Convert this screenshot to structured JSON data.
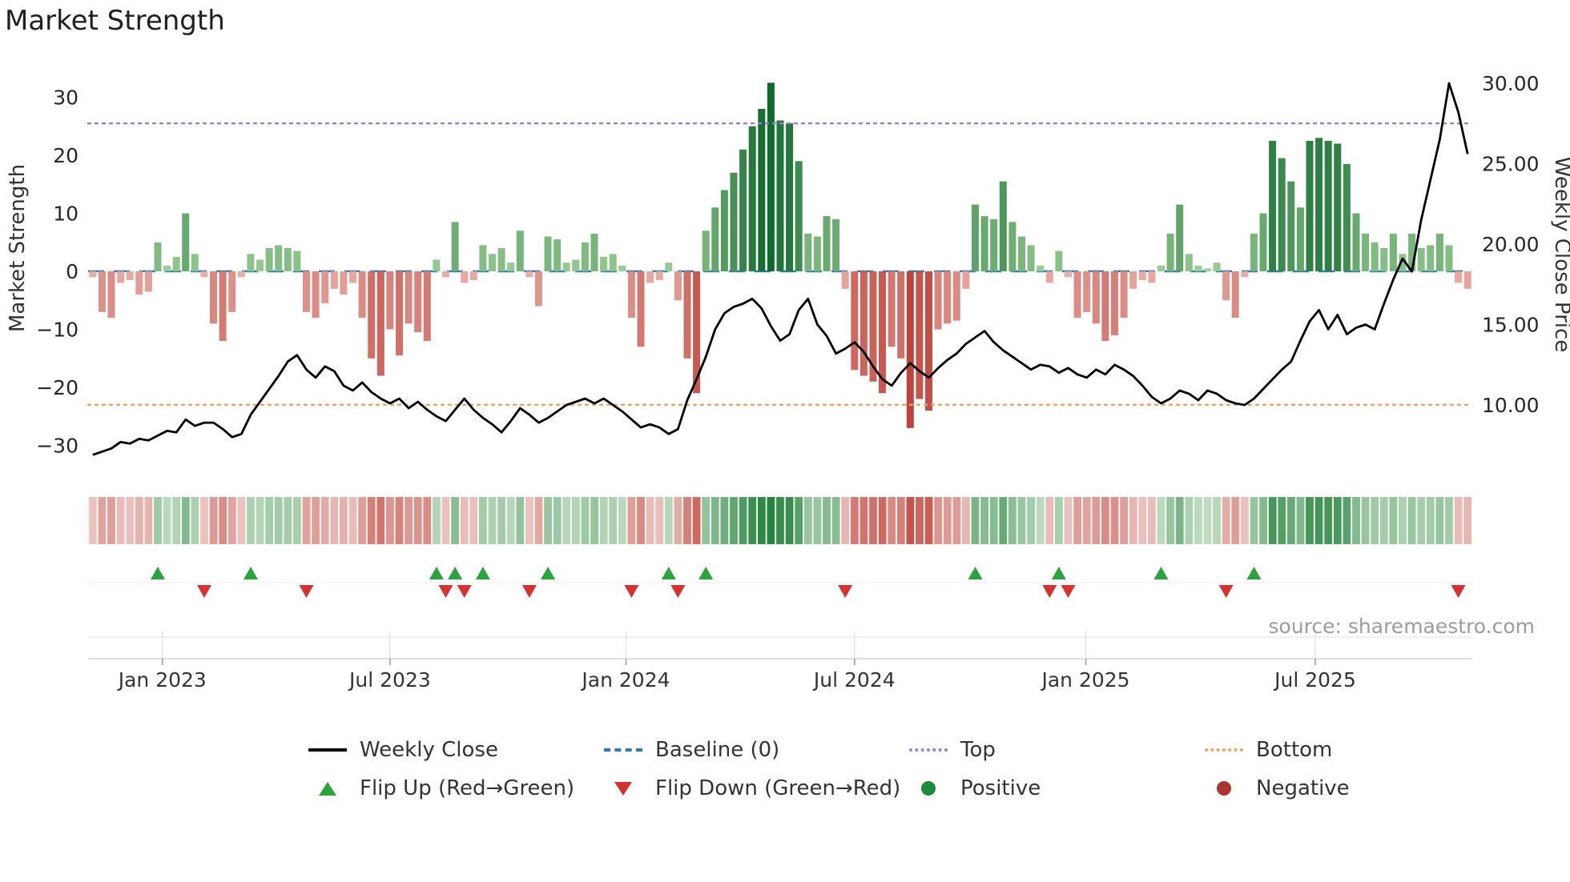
{
  "page": {
    "title": "Market Strength",
    "source": "source: sharemaestro.com"
  },
  "chart_data": {
    "type": "combo",
    "title": "Market Strength",
    "weeks": 149,
    "series": [
      {
        "name": "Market Strength",
        "type": "bar",
        "axis": "left",
        "values": [
          -1,
          -7,
          -8,
          -2,
          -1.5,
          -4,
          -3.5,
          5,
          1,
          2.5,
          10,
          3,
          -1,
          -9,
          -12,
          -7,
          -1,
          3,
          2,
          4,
          4.5,
          4,
          3.5,
          -7,
          -8,
          -5.5,
          -3,
          -4,
          -2,
          -8,
          -15,
          -18,
          -10,
          -14.5,
          -9,
          -10.5,
          -12,
          2,
          -1,
          8.5,
          -2,
          -1.5,
          4.5,
          3,
          4,
          1.5,
          7,
          -1,
          -6,
          6,
          5.5,
          1.5,
          2,
          5,
          6.5,
          2.5,
          3,
          1,
          -8,
          -13,
          -2,
          -1.5,
          1.5,
          -5,
          -15,
          -21,
          7,
          11,
          14,
          17,
          21,
          25,
          28,
          32.5,
          26,
          25.5,
          19,
          6.5,
          6,
          9.5,
          9,
          -3,
          -17,
          -18,
          -19,
          -21,
          -13,
          -15,
          -27,
          -22,
          -24,
          -10,
          -9,
          -8.5,
          -3,
          11.5,
          9.5,
          9,
          15.5,
          8.5,
          6,
          4.5,
          1,
          -2,
          3.5,
          -1,
          -8,
          -7,
          -9,
          -12,
          -11,
          -8,
          -3,
          -1.5,
          -2,
          1,
          6.5,
          11.5,
          3,
          1,
          0.5,
          1.5,
          -5,
          -8,
          -1,
          6.5,
          10,
          22.5,
          19.5,
          15.5,
          11,
          22.5,
          23,
          22.5,
          22,
          18.5,
          10,
          6.5,
          5,
          4,
          6.5,
          3,
          6.5,
          4,
          4.5,
          6.5,
          4.5,
          -2,
          -3
        ]
      },
      {
        "name": "Weekly Close",
        "type": "line",
        "axis": "right",
        "values": [
          6.9,
          7.1,
          7.3,
          7.7,
          7.6,
          7.9,
          7.8,
          8.1,
          8.4,
          8.3,
          9.1,
          8.7,
          8.9,
          8.9,
          8.5,
          8.0,
          8.2,
          9.4,
          10.2,
          11.0,
          11.8,
          12.7,
          13.1,
          12.2,
          11.7,
          12.4,
          12.1,
          11.2,
          10.9,
          11.4,
          10.8,
          10.4,
          10.1,
          10.4,
          9.8,
          10.2,
          9.7,
          9.3,
          9.0,
          9.7,
          10.4,
          9.7,
          9.2,
          8.8,
          8.3,
          9.0,
          9.8,
          9.4,
          8.9,
          9.2,
          9.6,
          10.0,
          10.2,
          10.4,
          10.1,
          10.4,
          10.0,
          9.6,
          9.1,
          8.6,
          8.8,
          8.6,
          8.2,
          8.5,
          10.3,
          11.6,
          13.0,
          14.7,
          15.7,
          16.1,
          16.3,
          16.6,
          16.0,
          14.9,
          14.0,
          14.4,
          15.9,
          16.6,
          15.0,
          14.3,
          13.2,
          13.5,
          13.9,
          13.3,
          12.4,
          11.6,
          11.2,
          12.0,
          12.6,
          12.1,
          11.7,
          12.3,
          12.8,
          13.2,
          13.8,
          14.2,
          14.6,
          13.9,
          13.4,
          13.0,
          12.6,
          12.2,
          12.5,
          12.4,
          12.0,
          12.3,
          11.9,
          11.7,
          12.2,
          11.9,
          12.5,
          12.2,
          11.8,
          11.2,
          10.5,
          10.1,
          10.4,
          10.9,
          10.7,
          10.3,
          10.9,
          10.7,
          10.3,
          10.1,
          10.0,
          10.4,
          11.0,
          11.6,
          12.2,
          12.7,
          14.0,
          15.2,
          15.9,
          14.7,
          15.6,
          14.4,
          14.8,
          15.0,
          14.7,
          16.3,
          17.8,
          19.1,
          18.3,
          21.5,
          24.0,
          26.5,
          30.0,
          28.2,
          25.6
        ]
      }
    ],
    "reference_lines": [
      {
        "name": "Baseline (0)",
        "value": 0,
        "axis": "left",
        "style": "dashed",
        "color": "#2d7cb8"
      },
      {
        "name": "Top",
        "value": 25.5,
        "axis": "left",
        "style": "dotted",
        "color": "#9b7fd4"
      },
      {
        "name": "Bottom",
        "value": -23,
        "axis": "left",
        "style": "dotted",
        "color": "#f2a25c"
      }
    ],
    "left_axis": {
      "label": "Market Strength",
      "ticks": [
        "30",
        "20",
        "10",
        "0",
        "−10",
        "−20",
        "−30"
      ],
      "tick_values": [
        30,
        20,
        10,
        0,
        -10,
        -20,
        -30
      ],
      "range": [
        -34,
        34
      ]
    },
    "right_axis": {
      "label": "Weekly Close Price",
      "ticks": [
        "30.00",
        "25.00",
        "20.00",
        "15.00",
        "10.00"
      ],
      "tick_values": [
        30,
        25,
        20,
        15,
        10
      ],
      "range": [
        5.5,
        31
      ]
    },
    "x_axis": {
      "ticks": [
        "Jan 2023",
        "Jul 2023",
        "Jan 2024",
        "Jul 2024",
        "Jan 2025",
        "Jul 2025"
      ],
      "tick_weeks": [
        7.5,
        32,
        57.4,
        82,
        106.9,
        131.6
      ]
    },
    "heatmap": {
      "derived_from": "Market Strength",
      "palette": "red-green diverging, one cell per week"
    },
    "flip_markers": {
      "derived_from": "sign changes of Market Strength",
      "up_symbol": "triangle-up",
      "down_symbol": "triangle-down"
    },
    "colors": {
      "line": "#000000",
      "bar_pos_light": [
        160,
        210,
        152
      ],
      "bar_pos_dark": [
        16,
        105,
        45
      ],
      "bar_neg_light": [
        235,
        180,
        172
      ],
      "bar_neg_dark": [
        185,
        58,
        50
      ],
      "heat_pos_light": [
        225,
        240,
        222
      ],
      "heat_pos_dark": [
        38,
        132,
        62
      ],
      "heat_neg_light": [
        244,
        226,
        223
      ],
      "heat_neg_dark": [
        196,
        74,
        64
      ],
      "flip_up": "#2ca33c",
      "flip_down": "#d93030",
      "tick_text": "#262626",
      "axis_label_text": "#333333",
      "source_text": "#9c9c9c",
      "grid_light": "#e0e0e0",
      "axis_line": "#c9c9c9"
    }
  },
  "legend": {
    "rows": [
      [
        {
          "label": "Weekly Close",
          "swatch": "line",
          "color": "#000000"
        },
        {
          "label": "Baseline (0)",
          "swatch": "dashed",
          "color": "#2d7cb8"
        },
        {
          "label": "Top",
          "swatch": "dotted",
          "color": "#9b7fd4"
        },
        {
          "label": "Bottom",
          "swatch": "dotted",
          "color": "#f2a25c"
        }
      ],
      [
        {
          "label": "Flip Up (Red→Green)",
          "swatch": "triangle-up",
          "color": "#2ca33c"
        },
        {
          "label": "Flip Down (Green→Red)",
          "swatch": "triangle-down",
          "color": "#d93030"
        },
        {
          "label": "Positive",
          "swatch": "circle",
          "color": "#1e8a3c"
        },
        {
          "label": "Negative",
          "swatch": "circle",
          "color": "#a83434"
        }
      ]
    ]
  }
}
